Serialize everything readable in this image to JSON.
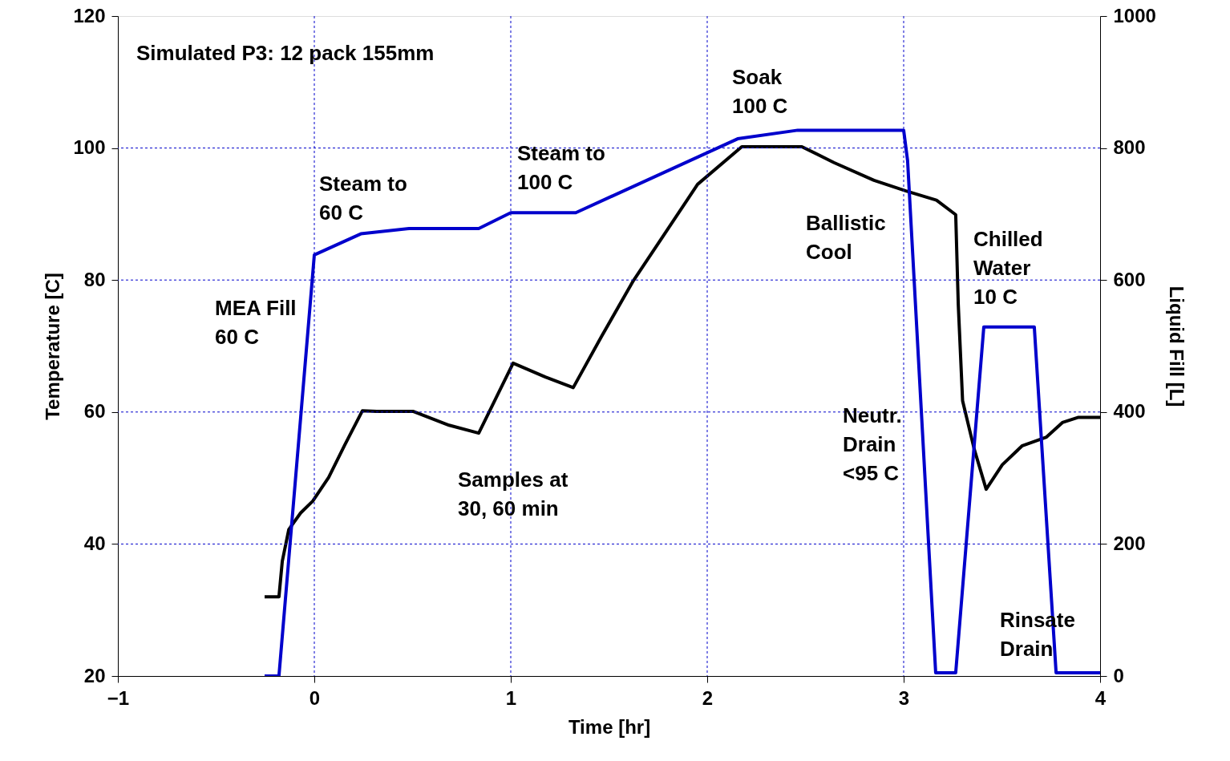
{
  "chart_data": {
    "type": "line",
    "xlabel": "Time [hr]",
    "ylabel": "Temperature [C]",
    "y2label": "Liquid Fill [L]",
    "xlim": [
      -1,
      4
    ],
    "xticks": [
      -1,
      0,
      1,
      2,
      3,
      4
    ],
    "ylim": [
      20,
      120
    ],
    "yticks": [
      20,
      40,
      60,
      80,
      100,
      120
    ],
    "y2lim": [
      0,
      1000
    ],
    "y2ticks": [
      0,
      200,
      400,
      600,
      800,
      1000
    ],
    "grid": true,
    "marker": "none",
    "line_style": "solid",
    "series": [
      {
        "color": "#000000",
        "x": [
          -0.253,
          -0.18,
          -0.163,
          -0.13,
          -0.07,
          -0.008,
          0.073,
          0.155,
          0.245,
          0.318,
          0.502,
          0.686,
          0.837,
          1.012,
          1.176,
          1.318,
          1.461,
          1.624,
          1.788,
          1.951,
          2.176,
          2.482,
          2.645,
          2.849,
          3.012,
          3.167,
          3.265,
          3.278,
          3.3,
          3.359,
          3.42,
          3.502,
          3.604,
          3.727,
          3.808,
          3.89,
          4.0
        ],
        "values": [
          32,
          32,
          37.4,
          42.2,
          44.7,
          46.5,
          50.1,
          55,
          60.2,
          60.1,
          60.1,
          58,
          56.8,
          67.4,
          65.3,
          63.7,
          71.4,
          79.9,
          87.2,
          94.5,
          100.2,
          100.2,
          97.8,
          95.1,
          93.5,
          92.1,
          89.9,
          76.3,
          61.7,
          54.4,
          48.3,
          52,
          54.9,
          56.2,
          58.4,
          59.2,
          59.2
        ]
      },
      {
        "color": "#0000cc",
        "axis": "y2",
        "x": [
          -0.253,
          -0.18,
          0,
          0.237,
          0.482,
          0.837,
          1.0,
          1.331,
          2.155,
          2.461,
          3.0,
          3.02,
          3.163,
          3.265,
          3.408,
          3.665,
          3.776,
          4.0
        ],
        "values": [
          0,
          0,
          638,
          670,
          678,
          678,
          702,
          702,
          814,
          827,
          827,
          781,
          5,
          5,
          529,
          529,
          5,
          5
        ]
      }
    ],
    "annotations": [
      "Simulated P3:  12 pack 155mm",
      "Steam to\n60 C",
      "Steam to\n100 C",
      "Soak\n100 C",
      "Ballistic\nCool",
      "Chilled\nWater\n10 C",
      "MEA Fill\n60 C",
      "Neutr.\nDrain\n<95 C",
      "Samples at\n30, 60 min",
      "Rinsate\nDrain"
    ]
  }
}
